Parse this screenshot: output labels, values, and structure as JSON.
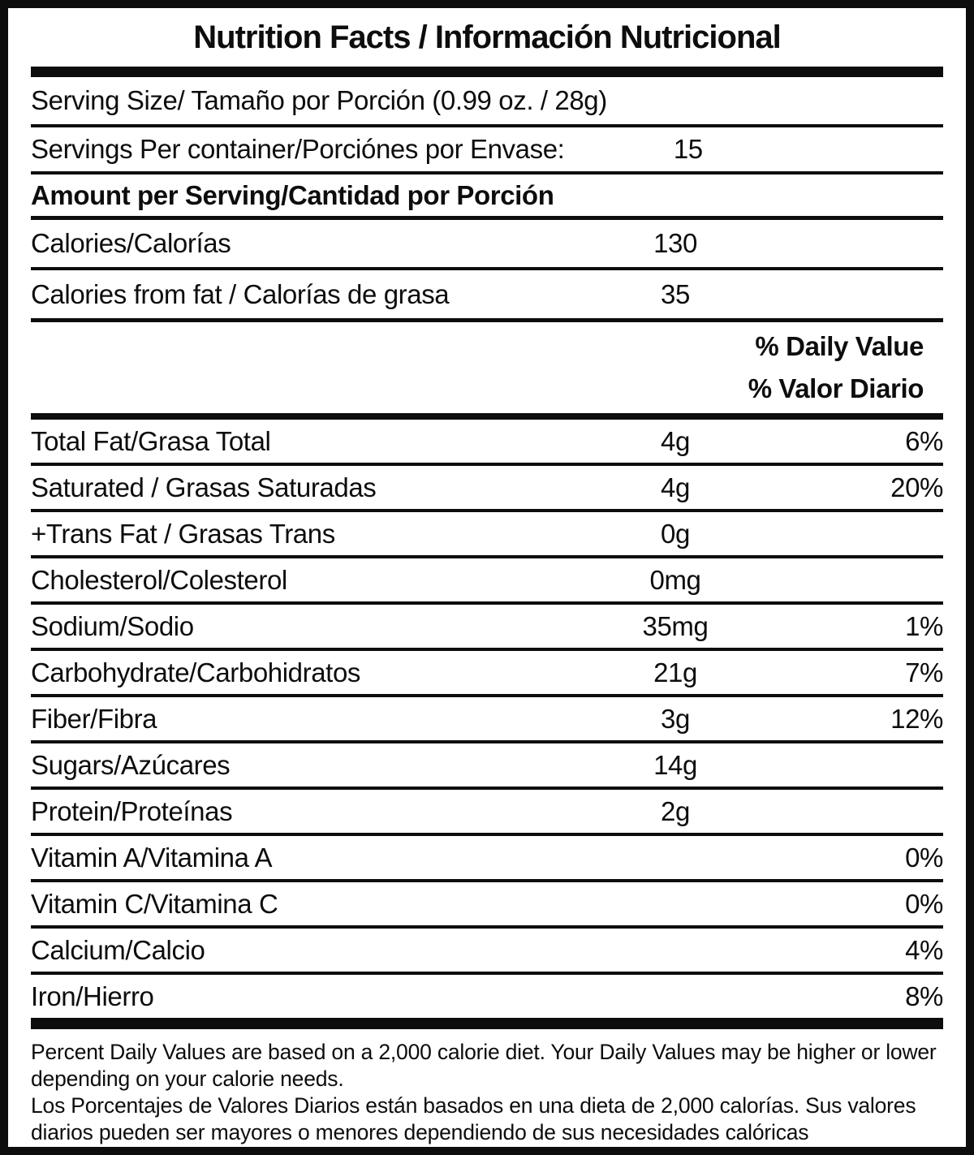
{
  "title": "Nutrition Facts / Información Nutricional",
  "serving_size": {
    "label": "Serving Size/ Tamaño por Porción  (0.99 oz. / 28g)"
  },
  "servings_per_container": {
    "label": "Servings Per container/Porciónes por Envase:",
    "value": "15"
  },
  "amount_per_serving": {
    "label": "Amount per Serving/Cantidad por Porción"
  },
  "calories": {
    "label": "Calories/Calorías",
    "value": "130"
  },
  "calories_from_fat": {
    "label": "Calories from fat / Calorías de grasa",
    "value": "35"
  },
  "daily_value_header": {
    "en": "% Daily Value",
    "es": "% Valor Diario"
  },
  "nutrients": [
    {
      "label": "Total Fat/Grasa Total",
      "amount": "4g",
      "percent": "6%"
    },
    {
      "label": "Saturated / Grasas Saturadas",
      "amount": "4g",
      "percent": "20%"
    },
    {
      "label": "+Trans Fat / Grasas Trans",
      "amount": "0g",
      "percent": ""
    },
    {
      "label": "Cholesterol/Colesterol",
      "amount": "0mg",
      "percent": ""
    },
    {
      "label": "Sodium/Sodio",
      "amount": "35mg",
      "percent": "1%"
    },
    {
      "label": "Carbohydrate/Carbohidratos",
      "amount": "21g",
      "percent": "7%"
    },
    {
      "label": "Fiber/Fibra",
      "amount": "3g",
      "percent": "12%"
    },
    {
      "label": "Sugars/Azúcares",
      "amount": "14g",
      "percent": ""
    },
    {
      "label": "Protein/Proteínas",
      "amount": "2g",
      "percent": ""
    },
    {
      "label": "Vitamin A/Vitamina A",
      "amount": "",
      "percent": "0%"
    },
    {
      "label": "Vitamin C/Vitamina C",
      "amount": "",
      "percent": "0%"
    },
    {
      "label": "Calcium/Calcio",
      "amount": "",
      "percent": "4%"
    },
    {
      "label": "Iron/Hierro",
      "amount": "",
      "percent": "8%"
    }
  ],
  "footnotes": {
    "en": "Percent Daily Values are based on a 2,000 calorie diet. Your Daily Values may be higher or lower depending on your calorie needs.",
    "es": "Los Porcentajes de Valores Diarios están basados en una dieta de 2,000 calorías. Sus valores diarios pueden ser mayores o menores dependiendo de sus necesidades calóricas"
  },
  "colors": {
    "ink": "#0d0d0d",
    "background": "#ffffff"
  }
}
